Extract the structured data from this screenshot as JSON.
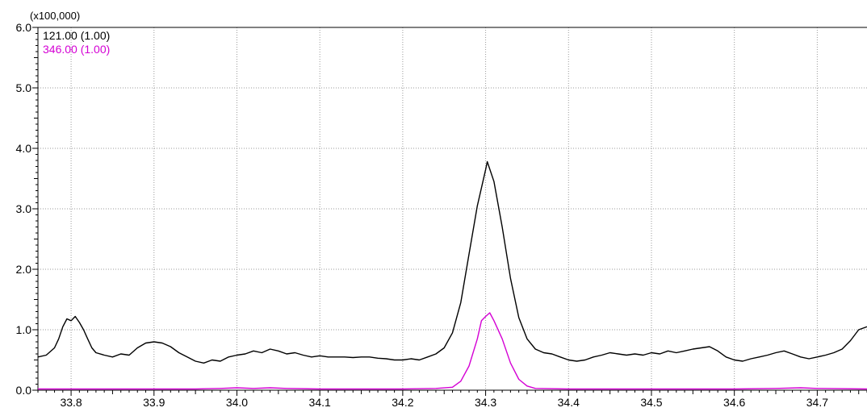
{
  "chart_data": {
    "type": "line",
    "y_multiplier_label": "(x100,000)",
    "xlim": [
      33.76,
      34.76
    ],
    "ylim": [
      0,
      6.0
    ],
    "x_ticks": [
      {
        "value": 33.8,
        "label": "33.8"
      },
      {
        "value": 33.9,
        "label": "33.9"
      },
      {
        "value": 34.0,
        "label": "34.0"
      },
      {
        "value": 34.1,
        "label": "34.1"
      },
      {
        "value": 34.2,
        "label": "34.2"
      },
      {
        "value": 34.3,
        "label": "34.3"
      },
      {
        "value": 34.4,
        "label": "34.4"
      },
      {
        "value": 34.5,
        "label": "34.5"
      },
      {
        "value": 34.6,
        "label": "34.6"
      },
      {
        "value": 34.7,
        "label": "34.7"
      }
    ],
    "y_ticks": [
      {
        "value": 0.0,
        "label": "0.0"
      },
      {
        "value": 1.0,
        "label": "1.0"
      },
      {
        "value": 2.0,
        "label": "2.0"
      },
      {
        "value": 3.0,
        "label": "3.0"
      },
      {
        "value": 4.0,
        "label": "4.0"
      },
      {
        "value": 5.0,
        "label": "5.0"
      },
      {
        "value": 6.0,
        "label": "6.0"
      }
    ],
    "grid": true,
    "legend_position": "top-left",
    "series": [
      {
        "name": "121.00 (1.00)",
        "color": "#000000",
        "points": [
          [
            33.76,
            0.55
          ],
          [
            33.77,
            0.58
          ],
          [
            33.78,
            0.7
          ],
          [
            33.785,
            0.85
          ],
          [
            33.79,
            1.05
          ],
          [
            33.795,
            1.18
          ],
          [
            33.8,
            1.15
          ],
          [
            33.805,
            1.22
          ],
          [
            33.81,
            1.12
          ],
          [
            33.815,
            1.0
          ],
          [
            33.82,
            0.85
          ],
          [
            33.825,
            0.7
          ],
          [
            33.83,
            0.62
          ],
          [
            33.84,
            0.58
          ],
          [
            33.85,
            0.55
          ],
          [
            33.86,
            0.6
          ],
          [
            33.87,
            0.58
          ],
          [
            33.88,
            0.7
          ],
          [
            33.89,
            0.78
          ],
          [
            33.9,
            0.8
          ],
          [
            33.91,
            0.78
          ],
          [
            33.92,
            0.72
          ],
          [
            33.93,
            0.62
          ],
          [
            33.94,
            0.55
          ],
          [
            33.95,
            0.48
          ],
          [
            33.96,
            0.45
          ],
          [
            33.97,
            0.5
          ],
          [
            33.98,
            0.48
          ],
          [
            33.99,
            0.55
          ],
          [
            34.0,
            0.58
          ],
          [
            34.01,
            0.6
          ],
          [
            34.02,
            0.65
          ],
          [
            34.03,
            0.62
          ],
          [
            34.04,
            0.68
          ],
          [
            34.05,
            0.65
          ],
          [
            34.06,
            0.6
          ],
          [
            34.07,
            0.62
          ],
          [
            34.08,
            0.58
          ],
          [
            34.09,
            0.55
          ],
          [
            34.1,
            0.57
          ],
          [
            34.11,
            0.55
          ],
          [
            34.12,
            0.55
          ],
          [
            34.13,
            0.55
          ],
          [
            34.14,
            0.54
          ],
          [
            34.15,
            0.55
          ],
          [
            34.16,
            0.55
          ],
          [
            34.17,
            0.53
          ],
          [
            34.18,
            0.52
          ],
          [
            34.19,
            0.5
          ],
          [
            34.2,
            0.5
          ],
          [
            34.21,
            0.52
          ],
          [
            34.22,
            0.5
          ],
          [
            34.23,
            0.55
          ],
          [
            34.24,
            0.6
          ],
          [
            34.25,
            0.7
          ],
          [
            34.26,
            0.95
          ],
          [
            34.27,
            1.45
          ],
          [
            34.28,
            2.25
          ],
          [
            34.29,
            3.05
          ],
          [
            34.3,
            3.65
          ],
          [
            34.302,
            3.78
          ],
          [
            34.31,
            3.45
          ],
          [
            34.32,
            2.7
          ],
          [
            34.33,
            1.85
          ],
          [
            34.34,
            1.2
          ],
          [
            34.35,
            0.85
          ],
          [
            34.36,
            0.68
          ],
          [
            34.37,
            0.62
          ],
          [
            34.38,
            0.6
          ],
          [
            34.39,
            0.55
          ],
          [
            34.4,
            0.5
          ],
          [
            34.41,
            0.48
          ],
          [
            34.42,
            0.5
          ],
          [
            34.43,
            0.55
          ],
          [
            34.44,
            0.58
          ],
          [
            34.45,
            0.62
          ],
          [
            34.46,
            0.6
          ],
          [
            34.47,
            0.58
          ],
          [
            34.48,
            0.6
          ],
          [
            34.49,
            0.58
          ],
          [
            34.5,
            0.62
          ],
          [
            34.51,
            0.6
          ],
          [
            34.52,
            0.65
          ],
          [
            34.53,
            0.62
          ],
          [
            34.54,
            0.65
          ],
          [
            34.55,
            0.68
          ],
          [
            34.56,
            0.7
          ],
          [
            34.57,
            0.72
          ],
          [
            34.58,
            0.65
          ],
          [
            34.59,
            0.55
          ],
          [
            34.6,
            0.5
          ],
          [
            34.61,
            0.48
          ],
          [
            34.62,
            0.52
          ],
          [
            34.63,
            0.55
          ],
          [
            34.64,
            0.58
          ],
          [
            34.65,
            0.62
          ],
          [
            34.66,
            0.65
          ],
          [
            34.67,
            0.6
          ],
          [
            34.68,
            0.55
          ],
          [
            34.69,
            0.52
          ],
          [
            34.7,
            0.55
          ],
          [
            34.71,
            0.58
          ],
          [
            34.72,
            0.62
          ],
          [
            34.73,
            0.68
          ],
          [
            34.74,
            0.82
          ],
          [
            34.75,
            1.0
          ],
          [
            34.76,
            1.05
          ]
        ]
      },
      {
        "name": "346.00 (1.00)",
        "color": "#d400d4",
        "points": [
          [
            33.76,
            0.02
          ],
          [
            33.8,
            0.02
          ],
          [
            33.85,
            0.02
          ],
          [
            33.9,
            0.02
          ],
          [
            33.95,
            0.02
          ],
          [
            33.98,
            0.03
          ],
          [
            34.0,
            0.04
          ],
          [
            34.02,
            0.03
          ],
          [
            34.04,
            0.04
          ],
          [
            34.06,
            0.03
          ],
          [
            34.1,
            0.02
          ],
          [
            34.15,
            0.02
          ],
          [
            34.2,
            0.02
          ],
          [
            34.24,
            0.03
          ],
          [
            34.26,
            0.05
          ],
          [
            34.27,
            0.15
          ],
          [
            34.28,
            0.4
          ],
          [
            34.29,
            0.85
          ],
          [
            34.295,
            1.15
          ],
          [
            34.3,
            1.22
          ],
          [
            34.305,
            1.28
          ],
          [
            34.31,
            1.15
          ],
          [
            34.32,
            0.85
          ],
          [
            34.33,
            0.45
          ],
          [
            34.34,
            0.18
          ],
          [
            34.35,
            0.07
          ],
          [
            34.36,
            0.03
          ],
          [
            34.4,
            0.02
          ],
          [
            34.45,
            0.02
          ],
          [
            34.5,
            0.02
          ],
          [
            34.55,
            0.02
          ],
          [
            34.6,
            0.02
          ],
          [
            34.65,
            0.03
          ],
          [
            34.68,
            0.04
          ],
          [
            34.7,
            0.03
          ],
          [
            34.76,
            0.02
          ]
        ]
      }
    ]
  }
}
